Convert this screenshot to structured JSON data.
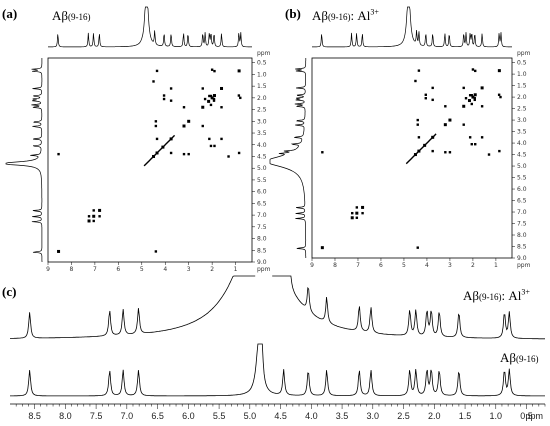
{
  "panels": {
    "a": {
      "letter": "(a)",
      "label_main": "Aβ",
      "label_sub": "(9-16)"
    },
    "b": {
      "letter": "(b)",
      "label_main": "Aβ",
      "label_sub": "(9-16)",
      "label_tail": ": Al",
      "label_sup": "3+"
    },
    "c": {
      "letter": "(c)",
      "trace_top": {
        "main": "Aβ",
        "sub": "(9-16)",
        "tail": ": Al",
        "sup": "3+"
      },
      "trace_bottom": {
        "main": "Aβ",
        "sub": "(9-16)"
      }
    }
  },
  "ppm_label": "ppm",
  "axis_2d_ticks": [
    "0.5",
    "1.0",
    "1.5",
    "2.0",
    "2.5",
    "3.0",
    "3.5",
    "4.0",
    "4.5",
    "5.0",
    "5.5",
    "6.0",
    "6.5",
    "7.0",
    "7.5",
    "8.0",
    "8.5",
    "9.0"
  ],
  "axis_2d_xticks": [
    "9",
    "8",
    "7",
    "6",
    "5",
    "4",
    "3",
    "2",
    "1"
  ],
  "chart_data": {
    "type": "line",
    "x_unit": "ppm",
    "x_ticks": [
      "8.5",
      "8.0",
      "7.5",
      "7.0",
      "6.5",
      "6.0",
      "5.5",
      "5.0",
      "4.5",
      "4.0",
      "3.5",
      "3.0",
      "2.5",
      "2.0",
      "1.5",
      "1.0",
      "0.5"
    ],
    "xlim": [
      8.9,
      0.2
    ],
    "series": [
      {
        "name": "Aβ(9-16): Al3+",
        "peaks_ppm": [
          8.58,
          7.28,
          7.06,
          6.81,
          4.45,
          4.35,
          4.05,
          3.75,
          3.22,
          3.03,
          2.4,
          2.3,
          2.12,
          2.05,
          1.92,
          1.6,
          0.86,
          0.78
        ]
      },
      {
        "name": "Aβ(9-16)",
        "peaks_ppm": [
          8.58,
          7.28,
          7.06,
          6.81,
          4.8,
          4.45,
          4.05,
          3.75,
          3.22,
          3.03,
          2.4,
          2.3,
          2.12,
          2.05,
          1.92,
          1.6,
          0.86,
          0.78
        ]
      }
    ]
  }
}
